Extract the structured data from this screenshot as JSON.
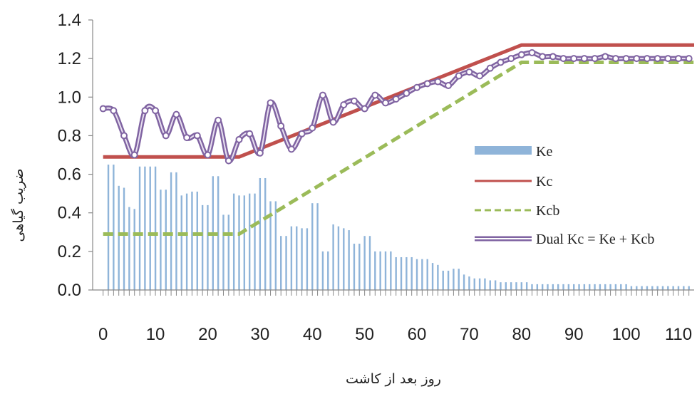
{
  "chart_data": {
    "type": "line",
    "xlabel": "روز بعد از کاشت",
    "ylabel": "ضریب گیاهی",
    "xlim": [
      -2,
      113
    ],
    "ylim": [
      0,
      1.4
    ],
    "x_ticks": [
      "0",
      "10",
      "20",
      "30",
      "40",
      "50",
      "60",
      "70",
      "80",
      "90",
      "100",
      "110"
    ],
    "y_ticks": [
      "0.0",
      "0.2",
      "0.4",
      "0.6",
      "0.8",
      "1.0",
      "1.2",
      "1.4"
    ],
    "grid": false,
    "legend_position": "right",
    "colors": {
      "Ke": "#8fb4d9",
      "Kc": "#c0504d",
      "Kcb": "#9bbb59",
      "Dual": "#8064a2"
    },
    "series": [
      {
        "name": "Ke",
        "type": "bar",
        "x": [
          1,
          2,
          3,
          4,
          5,
          6,
          7,
          8,
          9,
          10,
          11,
          12,
          13,
          14,
          15,
          16,
          17,
          18,
          19,
          20,
          21,
          22,
          23,
          24,
          25,
          26,
          27,
          28,
          29,
          30,
          31,
          32,
          33,
          34,
          35,
          36,
          37,
          38,
          39,
          40,
          41,
          42,
          43,
          44,
          45,
          46,
          47,
          48,
          49,
          50,
          51,
          52,
          53,
          54,
          55,
          56,
          57,
          58,
          59,
          60,
          61,
          62,
          63,
          64,
          65,
          66,
          67,
          68,
          69,
          70,
          71,
          72,
          73,
          74,
          75,
          76,
          77,
          78,
          79,
          80,
          81,
          82,
          83,
          84,
          85,
          86,
          87,
          88,
          89,
          90,
          91,
          92,
          93,
          94,
          95,
          96,
          97,
          98,
          99,
          100,
          101,
          102,
          103,
          104,
          105,
          106,
          107,
          108,
          109,
          110,
          111,
          112
        ],
        "values": [
          0.65,
          0.65,
          0.54,
          0.53,
          0.43,
          0.42,
          0.64,
          0.64,
          0.64,
          0.64,
          0.52,
          0.52,
          0.61,
          0.61,
          0.49,
          0.5,
          0.51,
          0.51,
          0.44,
          0.44,
          0.59,
          0.59,
          0.39,
          0.39,
          0.5,
          0.49,
          0.49,
          0.5,
          0.5,
          0.58,
          0.58,
          0.46,
          0.46,
          0.28,
          0.28,
          0.33,
          0.33,
          0.32,
          0.32,
          0.45,
          0.45,
          0.2,
          0.2,
          0.34,
          0.33,
          0.32,
          0.31,
          0.24,
          0.24,
          0.28,
          0.28,
          0.2,
          0.2,
          0.2,
          0.2,
          0.17,
          0.17,
          0.17,
          0.17,
          0.16,
          0.16,
          0.16,
          0.14,
          0.13,
          0.1,
          0.1,
          0.11,
          0.11,
          0.08,
          0.07,
          0.06,
          0.06,
          0.06,
          0.05,
          0.05,
          0.04,
          0.04,
          0.04,
          0.04,
          0.04,
          0.04,
          0.03,
          0.03,
          0.03,
          0.03,
          0.03,
          0.03,
          0.03,
          0.03,
          0.03,
          0.03,
          0.03,
          0.03,
          0.03,
          0.03,
          0.03,
          0.03,
          0.03,
          0.03,
          0.03,
          0.02,
          0.02,
          0.02,
          0.02,
          0.02,
          0.02,
          0.02,
          0.02,
          0.02,
          0.02,
          0.02,
          0.02
        ]
      },
      {
        "name": "Kc",
        "type": "line",
        "x": [
          0,
          26,
          80,
          113
        ],
        "values": [
          0.69,
          0.69,
          1.27,
          1.27
        ]
      },
      {
        "name": "Kcb",
        "type": "line",
        "dashed": true,
        "x": [
          0,
          26,
          80,
          113
        ],
        "values": [
          0.29,
          0.29,
          1.18,
          1.18
        ]
      },
      {
        "name": "Dual Kc = Ke + Kcb",
        "type": "line",
        "marker": "circle",
        "x": [
          0,
          2,
          4,
          6,
          8,
          10,
          12,
          14,
          16,
          18,
          20,
          22,
          24,
          26,
          28,
          30,
          32,
          34,
          36,
          38,
          40,
          42,
          44,
          46,
          48,
          50,
          52,
          54,
          56,
          58,
          60,
          62,
          64,
          66,
          68,
          70,
          72,
          74,
          76,
          78,
          80,
          82,
          84,
          86,
          88,
          90,
          92,
          94,
          96,
          98,
          100,
          102,
          104,
          106,
          108,
          110,
          112
        ],
        "values": [
          0.94,
          0.93,
          0.8,
          0.7,
          0.93,
          0.93,
          0.8,
          0.91,
          0.79,
          0.8,
          0.7,
          0.88,
          0.67,
          0.78,
          0.81,
          0.71,
          0.97,
          0.85,
          0.73,
          0.81,
          0.84,
          1.01,
          0.87,
          0.96,
          0.98,
          0.94,
          1.01,
          0.97,
          0.99,
          1.02,
          1.05,
          1.07,
          1.08,
          1.06,
          1.11,
          1.13,
          1.11,
          1.15,
          1.18,
          1.2,
          1.22,
          1.23,
          1.21,
          1.21,
          1.2,
          1.2,
          1.2,
          1.2,
          1.21,
          1.2,
          1.2,
          1.2,
          1.2,
          1.2,
          1.2,
          1.2,
          1.2
        ]
      }
    ],
    "legend": [
      "Ke",
      "Kc",
      "Kcb",
      "Dual Kc = Ke + Kcb"
    ]
  }
}
